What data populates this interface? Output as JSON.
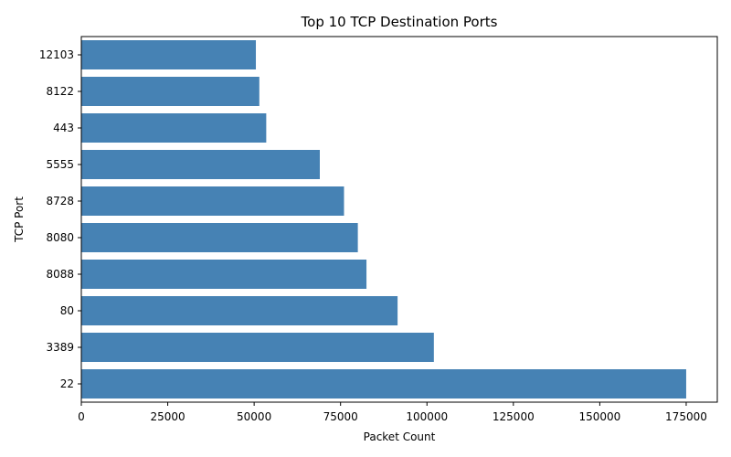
{
  "chart_data": {
    "type": "bar",
    "orientation": "horizontal",
    "title": "Top 10 TCP Destination Ports",
    "xlabel": "Packet Count",
    "ylabel": "TCP Port",
    "categories": [
      "22",
      "3389",
      "80",
      "8088",
      "8080",
      "8728",
      "5555",
      "443",
      "8122",
      "12103"
    ],
    "values": [
      175000,
      102000,
      91500,
      82500,
      80000,
      76000,
      69000,
      53500,
      51500,
      50500
    ],
    "xlim": [
      0,
      184000
    ],
    "xticks": [
      0,
      25000,
      50000,
      75000,
      100000,
      125000,
      150000,
      175000
    ],
    "xtick_labels": [
      "0",
      "25000",
      "50000",
      "75000",
      "100000",
      "125000",
      "150000",
      "175000"
    ],
    "bar_color": "#4682b4",
    "grid": false,
    "legend": "none"
  }
}
